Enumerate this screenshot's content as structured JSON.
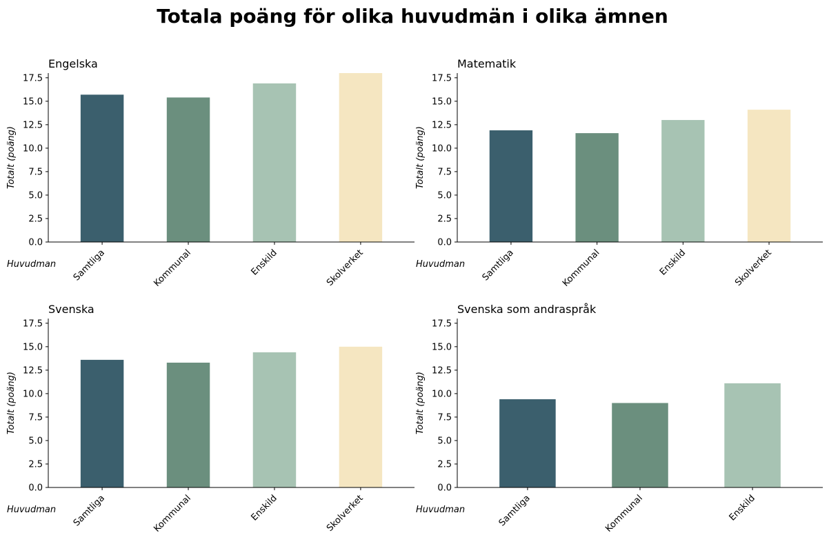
{
  "figure": {
    "title": "Totala poäng för olika huvudmän i olika ämnen"
  },
  "chart_data": [
    {
      "type": "bar",
      "title": "Engelska",
      "xlabel": "Huvudman",
      "ylabel": "Totalt (poäng)",
      "ylim": [
        0,
        18
      ],
      "yticks": [
        "0.0",
        "2.5",
        "5.0",
        "7.5",
        "10.0",
        "12.5",
        "15.0",
        "17.5"
      ],
      "categories": [
        "Samtliga",
        "Kommunal",
        "Enskild",
        "Skolverket"
      ],
      "values": [
        15.7,
        15.4,
        16.9,
        18.0
      ],
      "colors": [
        "#3b5f6d",
        "#6b8f7e",
        "#a7c3b3",
        "#f5e6c1"
      ],
      "grid": false
    },
    {
      "type": "bar",
      "title": "Matematik",
      "xlabel": "Huvudman",
      "ylabel": "Totalt (poäng)",
      "ylim": [
        0,
        18
      ],
      "yticks": [
        "0.0",
        "2.5",
        "5.0",
        "7.5",
        "10.0",
        "12.5",
        "15.0",
        "17.5"
      ],
      "categories": [
        "Samtliga",
        "Kommunal",
        "Enskild",
        "Skolverket"
      ],
      "values": [
        11.9,
        11.6,
        13.0,
        14.1
      ],
      "colors": [
        "#3b5f6d",
        "#6b8f7e",
        "#a7c3b3",
        "#f5e6c1"
      ],
      "grid": false
    },
    {
      "type": "bar",
      "title": "Svenska",
      "xlabel": "Huvudman",
      "ylabel": "Totalt (poäng)",
      "ylim": [
        0,
        18
      ],
      "yticks": [
        "0.0",
        "2.5",
        "5.0",
        "7.5",
        "10.0",
        "12.5",
        "15.0",
        "17.5"
      ],
      "categories": [
        "Samtliga",
        "Kommunal",
        "Enskild",
        "Skolverket"
      ],
      "values": [
        13.6,
        13.3,
        14.4,
        15.0
      ],
      "colors": [
        "#3b5f6d",
        "#6b8f7e",
        "#a7c3b3",
        "#f5e6c1"
      ],
      "grid": false
    },
    {
      "type": "bar",
      "title": "Svenska som andraspråk",
      "xlabel": "Huvudman",
      "ylabel": "Totalt (poäng)",
      "ylim": [
        0,
        18
      ],
      "yticks": [
        "0.0",
        "2.5",
        "5.0",
        "7.5",
        "10.0",
        "12.5",
        "15.0",
        "17.5"
      ],
      "categories": [
        "Samtliga",
        "Kommunal",
        "Enskild"
      ],
      "values": [
        9.4,
        9.0,
        11.1
      ],
      "colors": [
        "#3b5f6d",
        "#6b8f7e",
        "#a7c3b3"
      ],
      "grid": false
    }
  ]
}
